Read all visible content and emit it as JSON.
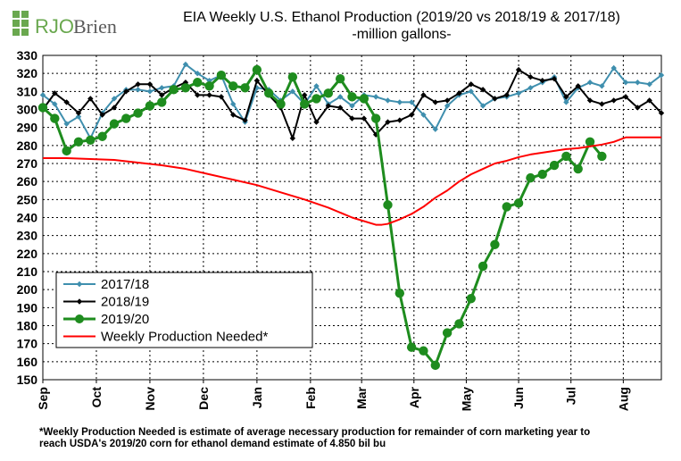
{
  "logo": {
    "text_a": "RJO",
    "text_b": "Brien"
  },
  "title": "EIA Weekly U.S. Ethanol Production (2019/20 vs 2018/19 & 2017/18)",
  "subtitle": "-million  gallons-",
  "footnote_line1": "*Weekly Production Needed is estimate of average necessary production for remainder of corn marketing year to",
  "footnote_line2": "reach USDA's 2019/20 corn for ethanol demand estimate of 4.850 bil bu",
  "colors": {
    "s1718": "#3f8fae",
    "s1819": "#000000",
    "s1920": "#1e8c1e",
    "needed": "#ff0000",
    "grid": "#000000",
    "logo_green": "#6aa84f",
    "logo_gray": "#5a5a5a"
  },
  "chart_data": {
    "type": "line",
    "ylim": [
      150,
      330
    ],
    "yticks": [
      150,
      160,
      170,
      180,
      190,
      200,
      210,
      220,
      230,
      240,
      250,
      260,
      270,
      280,
      290,
      300,
      310,
      320,
      330
    ],
    "xlim": [
      0,
      52
    ],
    "month_labels": [
      {
        "label": "Sep",
        "pos": 0
      },
      {
        "label": "Oct",
        "pos": 4.5
      },
      {
        "label": "Nov",
        "pos": 9
      },
      {
        "label": "Dec",
        "pos": 13.5
      },
      {
        "label": "Jan",
        "pos": 18
      },
      {
        "label": "Feb",
        "pos": 22.5
      },
      {
        "label": "Mar",
        "pos": 26.8
      },
      {
        "label": "Apr",
        "pos": 31.2
      },
      {
        "label": "May",
        "pos": 35.6
      },
      {
        "label": "Jun",
        "pos": 40
      },
      {
        "label": "Jul",
        "pos": 44.4
      },
      {
        "label": "Aug",
        "pos": 48.8
      }
    ],
    "grid": true,
    "legend_placement": "bottom-left",
    "series": [
      {
        "name": "2017/18",
        "color_key": "s1718",
        "marker": "small-diamond",
        "x": [
          0,
          1,
          2,
          3,
          4,
          5,
          6,
          7,
          8,
          9,
          10,
          11,
          12,
          13,
          14,
          15,
          16,
          17,
          18,
          19,
          20,
          21,
          22,
          23,
          24,
          25,
          26,
          27,
          28,
          29,
          30,
          31,
          32,
          33,
          34,
          35,
          36,
          37,
          38,
          39,
          40,
          41,
          42,
          43,
          44,
          45,
          46,
          47,
          48,
          49,
          50,
          51,
          52
        ],
        "values": [
          308,
          303,
          292,
          296,
          284,
          298,
          306,
          311,
          311,
          310,
          312,
          313,
          325,
          320,
          316,
          319,
          303,
          293,
          312,
          311,
          305,
          310,
          303,
          313,
          303,
          307,
          302,
          308,
          307,
          305,
          304,
          304,
          297,
          289,
          302,
          308,
          310,
          302,
          306,
          307,
          309,
          312,
          315,
          318,
          304,
          312,
          315,
          313,
          323,
          315,
          315,
          314,
          319
        ]
      },
      {
        "name": "2018/19",
        "color_key": "s1819",
        "marker": "small-diamond",
        "x": [
          0,
          1,
          2,
          3,
          4,
          5,
          6,
          7,
          8,
          9,
          10,
          11,
          12,
          13,
          14,
          15,
          16,
          17,
          18,
          19,
          20,
          21,
          22,
          23,
          24,
          25,
          26,
          27,
          28,
          29,
          30,
          31,
          32,
          33,
          34,
          35,
          36,
          37,
          38,
          39,
          40,
          41,
          42,
          43,
          44,
          45,
          46,
          47,
          48,
          49,
          50,
          51,
          52
        ],
        "values": [
          300,
          309,
          304,
          298,
          306,
          297,
          301,
          310,
          314,
          314,
          308,
          312,
          315,
          308,
          308,
          307,
          297,
          294,
          316,
          308,
          301,
          284,
          308,
          293,
          302,
          301,
          295,
          295,
          286,
          293,
          294,
          297,
          308,
          304,
          305,
          309,
          314,
          311,
          306,
          308,
          322,
          318,
          316,
          317,
          307,
          313,
          305,
          303,
          305,
          307,
          301,
          305,
          298
        ]
      },
      {
        "name": "2019/20",
        "color_key": "s1920",
        "marker": "circle",
        "x": [
          0,
          1,
          2,
          3,
          4,
          5,
          6,
          7,
          8,
          9,
          10,
          11,
          12,
          13,
          14,
          15,
          16,
          17,
          18,
          19,
          20,
          21,
          22,
          23,
          24,
          25,
          26,
          27,
          28,
          29,
          30,
          31,
          32,
          33,
          34,
          35,
          36,
          37,
          38,
          39,
          40,
          41,
          42,
          43,
          44,
          45,
          46,
          47
        ],
        "values": [
          301,
          295,
          277,
          282,
          283,
          285,
          292,
          295,
          298,
          302,
          304,
          311,
          312,
          315,
          313,
          319,
          313,
          312,
          322,
          309,
          303,
          318,
          303,
          306,
          309,
          317,
          307,
          306,
          295,
          247,
          198,
          168,
          166,
          158,
          176,
          181,
          195,
          213,
          225,
          246,
          248,
          262,
          264,
          269,
          274,
          267,
          282,
          274
        ]
      },
      {
        "name": "Weekly Production Needed*",
        "color_key": "needed",
        "marker": "none",
        "x": [
          0,
          2,
          4,
          6,
          8,
          10,
          12,
          14,
          16,
          18,
          20,
          22,
          24,
          26,
          28,
          28.5,
          29,
          30,
          31,
          32,
          33,
          34,
          35,
          36,
          37,
          38,
          39,
          40,
          41,
          42,
          43,
          44,
          45,
          46,
          47,
          48,
          49,
          50,
          51,
          52
        ],
        "values": [
          273,
          273,
          272.5,
          272,
          270.5,
          269,
          267,
          264,
          261,
          258,
          254,
          250,
          245.5,
          240,
          236,
          236,
          236.5,
          239,
          242,
          246,
          251,
          255,
          260,
          264,
          267,
          270,
          271.5,
          273.5,
          275,
          276,
          277,
          278,
          278.5,
          279.5,
          280.5,
          282,
          284.5,
          284.5,
          284.5,
          284.5
        ]
      }
    ]
  }
}
